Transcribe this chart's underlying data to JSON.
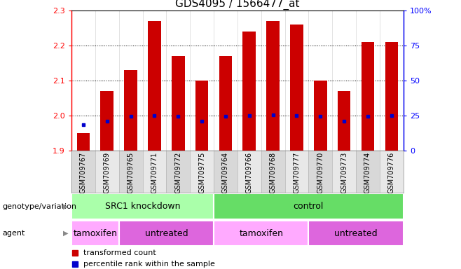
{
  "title": "GDS4095 / 1566477_at",
  "samples": [
    "GSM709767",
    "GSM709769",
    "GSM709765",
    "GSM709771",
    "GSM709772",
    "GSM709775",
    "GSM709764",
    "GSM709766",
    "GSM709768",
    "GSM709777",
    "GSM709770",
    "GSM709773",
    "GSM709774",
    "GSM709776"
  ],
  "bar_values": [
    1.95,
    2.07,
    2.13,
    2.27,
    2.17,
    2.1,
    2.17,
    2.24,
    2.27,
    2.26,
    2.1,
    2.07,
    2.21,
    2.21
  ],
  "blue_dot_y": [
    1.975,
    1.985,
    1.998,
    2.0,
    1.998,
    1.984,
    1.998,
    2.0,
    2.002,
    2.0,
    1.998,
    1.984,
    1.998,
    2.0
  ],
  "ylim": [
    1.9,
    2.3
  ],
  "yticks": [
    1.9,
    2.0,
    2.1,
    2.2,
    2.3
  ],
  "right_yticks": [
    0,
    25,
    50,
    75,
    100
  ],
  "right_ytick_labels": [
    "0",
    "25",
    "50",
    "75",
    "100%"
  ],
  "bar_color": "#cc0000",
  "dot_color": "#0000cc",
  "bar_bottom": 1.9,
  "genotype_groups": [
    {
      "label": "SRC1 knockdown",
      "start": 0,
      "end": 6,
      "color": "#aaffaa"
    },
    {
      "label": "control",
      "start": 6,
      "end": 14,
      "color": "#66dd66"
    }
  ],
  "agent_groups": [
    {
      "label": "tamoxifen",
      "start": 0,
      "end": 2,
      "color": "#ffaaff"
    },
    {
      "label": "untreated",
      "start": 2,
      "end": 6,
      "color": "#dd66dd"
    },
    {
      "label": "tamoxifen",
      "start": 6,
      "end": 10,
      "color": "#ffaaff"
    },
    {
      "label": "untreated",
      "start": 10,
      "end": 14,
      "color": "#dd66dd"
    }
  ],
  "legend_items": [
    {
      "label": "transformed count",
      "color": "#cc0000"
    },
    {
      "label": "percentile rank within the sample",
      "color": "#0000cc"
    }
  ],
  "row_labels": [
    "genotype/variation",
    "agent"
  ],
  "background_color": "#ffffff",
  "bar_width": 0.55,
  "grid_yticks": [
    2.0,
    2.1,
    2.2
  ],
  "label_fontsize": 8,
  "title_fontsize": 11
}
